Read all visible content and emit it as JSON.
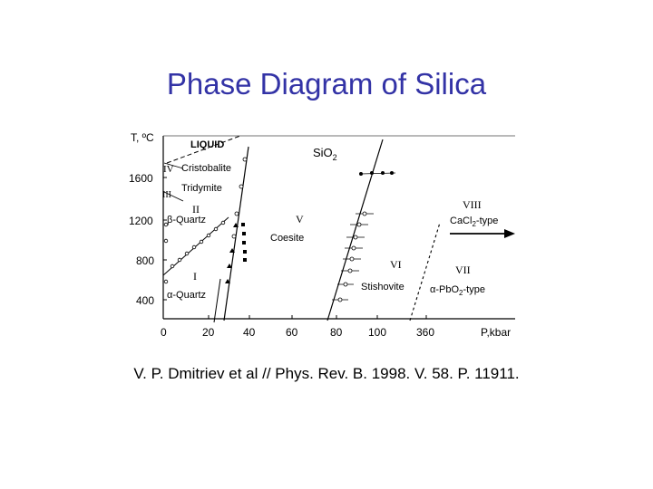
{
  "slide": {
    "title": "Phase Diagram of Silica",
    "caption": "V. P. Dmitriev et al // Phys. Rev. B. 1998. V. 58. P. 11911."
  },
  "diagram": {
    "axis": {
      "y_label": "T, ºC",
      "x_label": "P,kbar",
      "y_ticks": [
        "400",
        "800",
        "1200",
        "1600"
      ],
      "x_ticks": [
        "0",
        "20",
        "40",
        "60",
        "80",
        "100",
        "360"
      ]
    },
    "compound": "SiO",
    "compound_sub": "2",
    "regions": {
      "liquid": "LIQUID",
      "cristobalite": "Cristobalite",
      "tridymite": "Tridymite",
      "beta_quartz": "β-Quartz",
      "alpha_quartz": "α-Quartz",
      "coesite": "Coesite",
      "stishovite": "Stishovite",
      "cacl2_pre": "CaCl",
      "cacl2_sub": "2",
      "cacl2_post": "-type",
      "pbo2_pre": "α-PbO",
      "pbo2_sub": "2",
      "pbo2_post": "-type"
    },
    "phase_numbers": {
      "I": "I",
      "II": "II",
      "IV": "IV",
      "III": "III",
      "V": "V",
      "VI": "VI",
      "VII": "VII",
      "VIII": "VIII"
    }
  }
}
